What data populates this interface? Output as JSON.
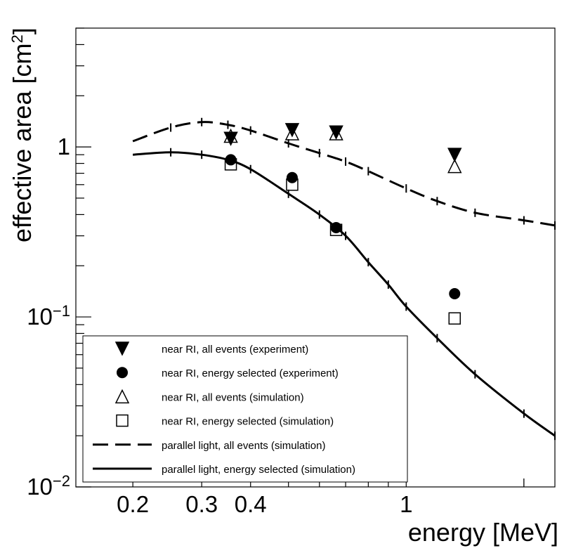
{
  "chart_data": {
    "type": "scatter",
    "title": "",
    "xlabel": "energy [MeV]",
    "ylabel": "effective area [cm",
    "ylabel_sup": "2",
    "ylabel_end": "]",
    "xscale": "log",
    "yscale": "log",
    "xlim": [
      0.143,
      2.4
    ],
    "ylim": [
      0.01,
      5
    ],
    "x_ticklabels": [
      {
        "value": 0.2,
        "label": "0.2"
      },
      {
        "value": 0.3,
        "label": "0.3"
      },
      {
        "value": 0.4,
        "label": "0.4"
      },
      {
        "value": 1,
        "label": "1"
      }
    ],
    "y_ticklabels": [
      {
        "value": 0.01,
        "base": "10",
        "exp": "−2"
      },
      {
        "value": 0.1,
        "base": "10",
        "exp": "−1"
      },
      {
        "value": 1,
        "base": "1",
        "exp": ""
      }
    ],
    "series": [
      {
        "name": "near RI, all events (experiment)",
        "marker": "triangle-down-filled",
        "x": [
          0.356,
          0.511,
          0.662,
          1.33
        ],
        "y": [
          1.12,
          1.26,
          1.22,
          0.9
        ]
      },
      {
        "name": "near RI, energy selected (experiment)",
        "marker": "circle-filled",
        "x": [
          0.356,
          0.511,
          0.662,
          1.33
        ],
        "y": [
          0.84,
          0.66,
          0.335,
          0.137
        ]
      },
      {
        "name": "near RI, all events (simulation)",
        "marker": "triangle-up-open",
        "x": [
          0.356,
          0.511,
          0.662,
          1.33
        ],
        "y": [
          1.16,
          1.2,
          1.2,
          0.77
        ]
      },
      {
        "name": "near RI, energy selected (simulation)",
        "marker": "square-open",
        "x": [
          0.356,
          0.511,
          0.662,
          1.33
        ],
        "y": [
          0.79,
          0.6,
          0.325,
          0.098
        ]
      },
      {
        "name": "parallel light, all events (simulation)",
        "line": "dashed",
        "x": [
          0.2,
          0.25,
          0.3,
          0.35,
          0.4,
          0.5,
          0.6,
          0.7,
          0.8,
          1.0,
          1.2,
          1.5,
          2.0,
          2.4
        ],
        "y": [
          1.08,
          1.3,
          1.4,
          1.35,
          1.25,
          1.05,
          0.92,
          0.82,
          0.72,
          0.57,
          0.48,
          0.41,
          0.37,
          0.345
        ]
      },
      {
        "name": "parallel light, energy selected (simulation)",
        "line": "solid",
        "x": [
          0.2,
          0.25,
          0.3,
          0.35,
          0.4,
          0.5,
          0.6,
          0.7,
          0.8,
          0.9,
          1.0,
          1.2,
          1.5,
          2.0,
          2.4
        ],
        "y": [
          0.9,
          0.93,
          0.9,
          0.84,
          0.74,
          0.53,
          0.4,
          0.3,
          0.21,
          0.155,
          0.115,
          0.075,
          0.046,
          0.027,
          0.02
        ]
      }
    ],
    "legend": {
      "position": "bottom-left",
      "entries": [
        "near RI, all events (experiment)",
        "near RI, energy selected (experiment)",
        "near RI, all events (simulation)",
        "near RI, energy selected (simulation)",
        "parallel light, all events (simulation)",
        "parallel light, energy selected (simulation)"
      ]
    }
  }
}
